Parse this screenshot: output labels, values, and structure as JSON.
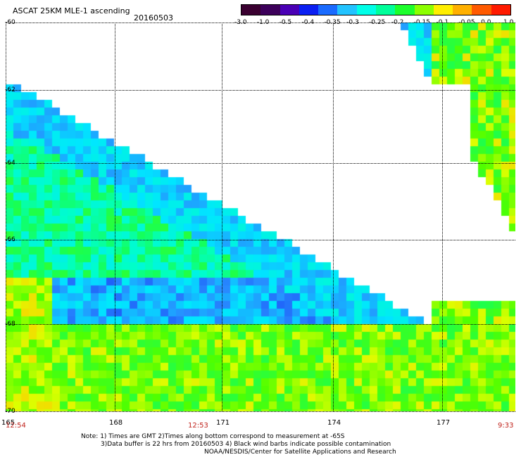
{
  "header": {
    "title": "ASCAT 25KM MLE-1 ascending",
    "date": "20160503"
  },
  "colorbar": {
    "labels": [
      "-3.0",
      "-1.0",
      "-0.5",
      "-0.4",
      "-0.35",
      "-0.3",
      "-0.25",
      "-0.2",
      "-0.15",
      "-0.1",
      "-0.05",
      "0.0",
      "1.0"
    ],
    "colors": [
      "#3a0030",
      "#3c005a",
      "#4a00b5",
      "#0b1ff2",
      "#1a6bff",
      "#22c3ff",
      "#00ffe8",
      "#00ff9a",
      "#1cff2c",
      "#8cff00",
      "#ffee00",
      "#ffb000",
      "#ff5a00",
      "#ff1a00"
    ]
  },
  "axes": {
    "latitudes": [
      "-60",
      "-62",
      "-64",
      "-66",
      "-68",
      "-70"
    ],
    "longitudes": [
      "165",
      "168",
      "171",
      "174",
      "177"
    ],
    "time_labels": [
      "12:54",
      "12:53",
      "9:33"
    ]
  },
  "notes": {
    "line1": "Note: 1) Times are GMT 2)Times along bottom correspond to measurement at -65S",
    "line2": "3)Data buffer is 22 hrs from 20160503 4) Black wind barbs indicate possible contamination",
    "line3": "NOAA/NESDIS/Center for Satellite Applications and Research"
  }
}
